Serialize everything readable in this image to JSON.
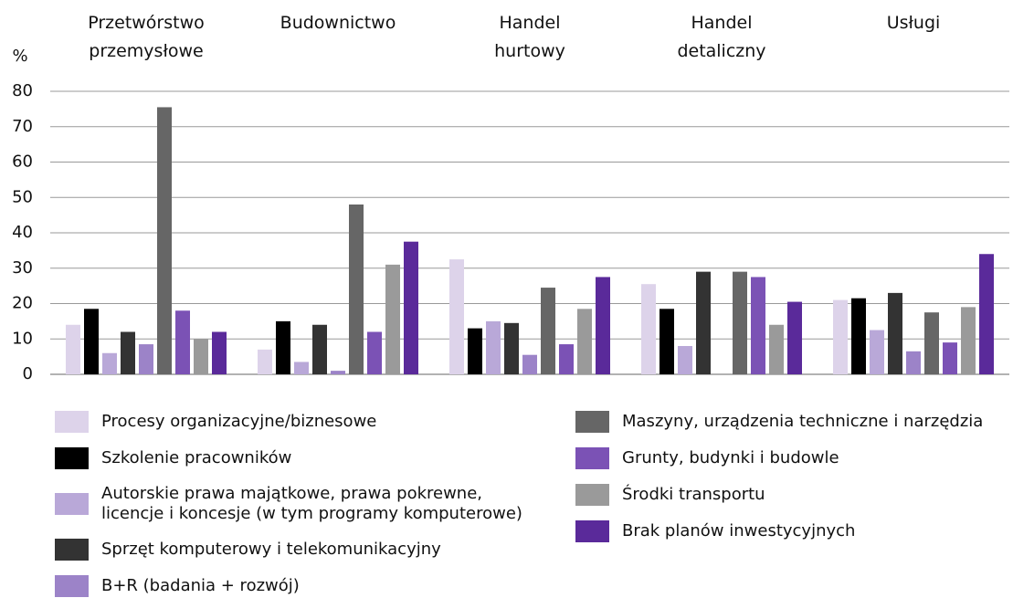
{
  "chart_data": {
    "type": "bar",
    "y_label": "%",
    "categories": [
      "Przetwórstwo\nprzemysłowe",
      "Budownictwo",
      "Handel\nhurtowy",
      "Handel\ndetaliczny",
      "Usługi"
    ],
    "series": [
      {
        "name": "Procesy organizacyjne/biznesowe",
        "color": "#ddd3ea",
        "values": [
          14,
          7,
          32.5,
          25.5,
          21
        ]
      },
      {
        "name": "Szkolenie pracowników",
        "color": "#000000",
        "values": [
          18.5,
          15,
          13,
          18.5,
          21.5
        ]
      },
      {
        "name": "Autorskie prawa majątkowe, prawa pokrewne,\nlicencje i koncesje (w tym programy komputerowe)",
        "color": "#b9a8d8",
        "values": [
          6,
          3.5,
          15,
          8,
          12.5
        ]
      },
      {
        "name": "Sprzęt komputerowy i telekomunikacyjny",
        "color": "#333333",
        "values": [
          12,
          14,
          14.5,
          29,
          23
        ]
      },
      {
        "name": "B+R (badania + rozwój)",
        "color": "#9c83c8",
        "values": [
          8.5,
          1,
          5.5,
          0,
          6.5
        ]
      },
      {
        "name": "Maszyny, urządzenia techniczne i narzędzia",
        "color": "#666666",
        "values": [
          75.5,
          48,
          24.5,
          29,
          17.5
        ]
      },
      {
        "name": "Grunty, budynki i budowle",
        "color": "#7b52b5",
        "values": [
          18,
          12,
          8.5,
          27.5,
          9
        ]
      },
      {
        "name": "Środki transportu",
        "color": "#9a9a9a",
        "values": [
          10,
          31,
          18.5,
          14,
          19
        ]
      },
      {
        "name": "Brak planów inwestycyjnych",
        "color": "#5a2a9a",
        "values": [
          12,
          37.5,
          27.5,
          20.5,
          34
        ]
      }
    ],
    "ylim": [
      0,
      80
    ],
    "yticks": [
      0,
      10,
      20,
      30,
      40,
      50,
      60,
      70,
      80
    ],
    "grid": true
  }
}
